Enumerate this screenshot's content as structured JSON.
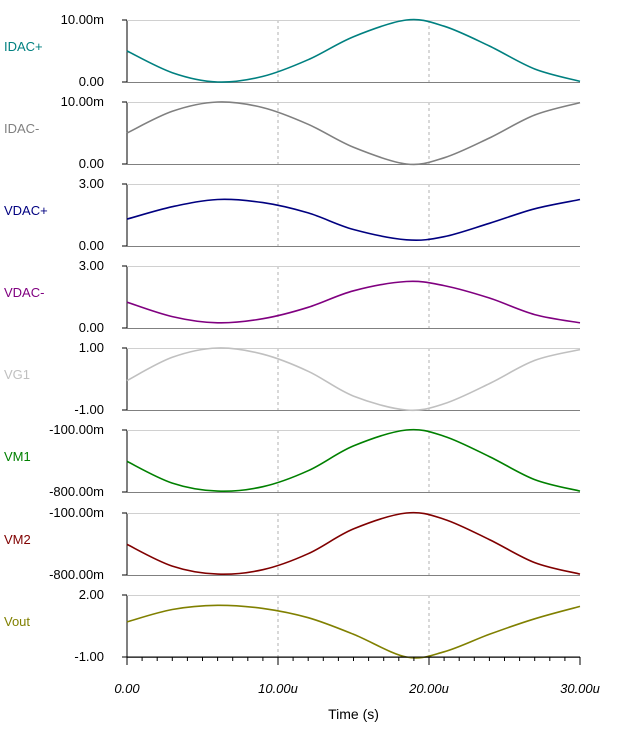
{
  "chart_data": {
    "type": "line",
    "xlabel": "Time (s)",
    "x_tick_labels": [
      "0.00",
      "10.00u",
      "20.00u",
      "30.00u"
    ],
    "x_tick_values": [
      0,
      10,
      20,
      30
    ],
    "x_unit": "us",
    "xlim": [
      0,
      30
    ],
    "grid": "vertical dashed at 10.00u and 20.00u",
    "panels": [
      {
        "name": "IDAC+",
        "color": "#008080",
        "ylim": [
          0,
          10
        ],
        "y_tick_labels": [
          "10.00m",
          "0.00"
        ],
        "x": [
          0,
          3,
          6,
          9,
          12,
          15,
          18.5,
          21,
          24,
          27,
          30
        ],
        "y": [
          5.0,
          1.5,
          0.0,
          0.9,
          3.6,
          7.3,
          10.0,
          9.0,
          5.8,
          2.1,
          0.1
        ]
      },
      {
        "name": "IDAC-",
        "color": "#808080",
        "ylim": [
          0,
          10
        ],
        "y_tick_labels": [
          "10.00m",
          "0.00"
        ],
        "x": [
          0,
          3,
          6,
          9,
          12,
          15,
          18.5,
          21,
          24,
          27,
          30
        ],
        "y": [
          5.0,
          8.5,
          10.0,
          9.1,
          6.4,
          2.7,
          0.0,
          1.0,
          4.2,
          7.9,
          9.9
        ]
      },
      {
        "name": "VDAC+",
        "color": "#000080",
        "ylim": [
          0,
          3
        ],
        "y_tick_labels": [
          "3.00",
          "0.00"
        ],
        "x": [
          0,
          3,
          6,
          9,
          12,
          15,
          18.5,
          21,
          24,
          27,
          30
        ],
        "y": [
          1.3,
          1.9,
          2.25,
          2.1,
          1.6,
          0.8,
          0.3,
          0.45,
          1.1,
          1.8,
          2.25
        ]
      },
      {
        "name": "VDAC-",
        "color": "#800080",
        "ylim": [
          0,
          3
        ],
        "y_tick_labels": [
          "3.00",
          "0.00"
        ],
        "x": [
          0,
          3,
          6,
          9,
          12,
          15,
          18.5,
          21,
          24,
          27,
          30
        ],
        "y": [
          1.25,
          0.55,
          0.25,
          0.45,
          1.0,
          1.8,
          2.25,
          2.05,
          1.45,
          0.65,
          0.25
        ]
      },
      {
        "name": "VG1",
        "color": "#c0c0c0",
        "ylim": [
          -1,
          1
        ],
        "y_tick_labels": [
          "1.00",
          "-1.00"
        ],
        "x": [
          0,
          3,
          6,
          9,
          12,
          15,
          18.5,
          21,
          24,
          27,
          30
        ],
        "y": [
          -0.05,
          0.7,
          1.0,
          0.8,
          0.25,
          -0.55,
          -1.0,
          -0.8,
          -0.15,
          0.6,
          0.95
        ]
      },
      {
        "name": "VM1",
        "color": "#008000",
        "ylim": [
          -800,
          -100
        ],
        "y_tick_labels": [
          "-100.00m",
          "-800.00m"
        ],
        "x": [
          0,
          3,
          6,
          9,
          12,
          15,
          18.5,
          21,
          24,
          27,
          30
        ],
        "y": [
          -455,
          -700,
          -790,
          -740,
          -560,
          -280,
          -100,
          -170,
          -400,
          -660,
          -790
        ]
      },
      {
        "name": "VM2",
        "color": "#800000",
        "ylim": [
          -800,
          -100
        ],
        "y_tick_labels": [
          "-100.00m",
          "-800.00m"
        ],
        "x": [
          0,
          3,
          6,
          9,
          12,
          15,
          18.5,
          21,
          24,
          27,
          30
        ],
        "y": [
          -455,
          -700,
          -790,
          -740,
          -560,
          -280,
          -100,
          -170,
          -400,
          -660,
          -790
        ]
      },
      {
        "name": "Vout",
        "color": "#808000",
        "ylim": [
          -1,
          2
        ],
        "y_tick_labels": [
          "2.00",
          "-1.00"
        ],
        "x": [
          0,
          3,
          6,
          9,
          12,
          15,
          18.5,
          21,
          24,
          27,
          30
        ],
        "y": [
          0.7,
          1.3,
          1.5,
          1.35,
          0.9,
          0.1,
          -1.0,
          -0.75,
          0.1,
          0.85,
          1.45
        ]
      }
    ]
  }
}
